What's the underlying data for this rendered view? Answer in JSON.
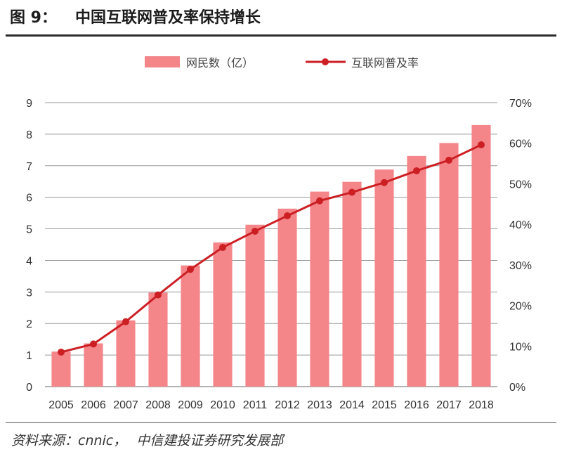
{
  "figure": {
    "label": "图 9：",
    "title": "中国互联网普及率保持增长",
    "source": "资料来源：cnnic，",
    "source_org": "中信建投证券研究发展部"
  },
  "colors": {
    "bar": "#f4868a",
    "line": "#cc1f24",
    "grid": "#9a9a9a"
  },
  "chart_data": {
    "type": "bar",
    "categories": [
      "2005",
      "2006",
      "2007",
      "2008",
      "2009",
      "2010",
      "2011",
      "2012",
      "2013",
      "2014",
      "2015",
      "2016",
      "2017",
      "2018"
    ],
    "series": [
      {
        "name": "网民数（亿）",
        "type": "bar",
        "axis": "left",
        "values": [
          1.11,
          1.37,
          2.1,
          2.98,
          3.84,
          4.57,
          5.13,
          5.64,
          6.18,
          6.49,
          6.88,
          7.31,
          7.72,
          8.29
        ]
      },
      {
        "name": "互联网普及率",
        "type": "line",
        "axis": "right",
        "values": [
          8.5,
          10.5,
          16.0,
          22.6,
          28.9,
          34.3,
          38.3,
          42.1,
          45.8,
          47.9,
          50.3,
          53.2,
          55.8,
          59.6
        ]
      }
    ],
    "y_left": {
      "min": 0,
      "max": 9,
      "ticks": [
        "0",
        "1",
        "2",
        "3",
        "4",
        "5",
        "6",
        "7",
        "8",
        "9"
      ]
    },
    "y_right": {
      "min": 0,
      "max": 70,
      "ticks": [
        "0%",
        "10%",
        "20%",
        "30%",
        "40%",
        "50%",
        "60%",
        "70%"
      ]
    },
    "grid": true,
    "legend_position": "top"
  }
}
